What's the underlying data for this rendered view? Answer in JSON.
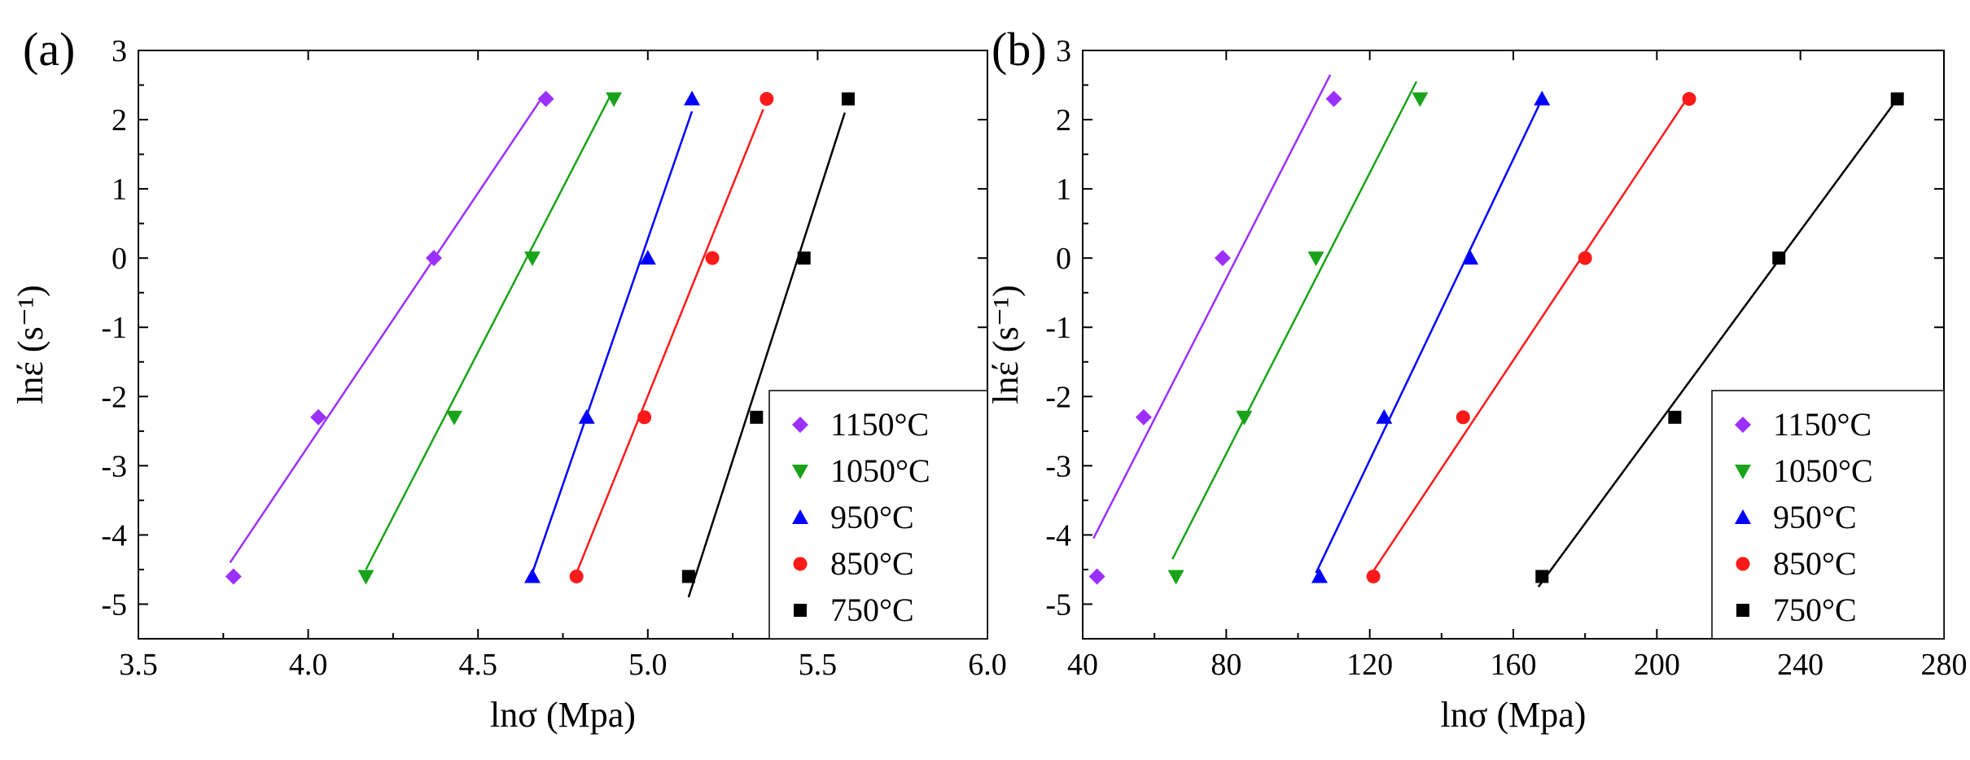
{
  "chart_data": [
    {
      "type": "scatter",
      "panel_label": "(a)",
      "title": "",
      "xlabel": "lnσ (Mpa)",
      "ylabel": "lnέ (s⁻¹)",
      "xlim": [
        3.5,
        6.0
      ],
      "ylim": [
        -5.5,
        3
      ],
      "xticks": [
        3.5,
        4.0,
        4.5,
        5.0,
        5.5,
        6.0
      ],
      "xtick_labels": [
        "3.5",
        "4.0",
        "4.5",
        "5.0",
        "5.5",
        "6.0"
      ],
      "yticks": [
        -5,
        -4,
        -3,
        -2,
        -1,
        0,
        1,
        2,
        3
      ],
      "ytick_labels": [
        "-5",
        "-4",
        "-3",
        "-2",
        "-1",
        "0",
        "1",
        "2",
        "3"
      ],
      "legend_position": "bottom-right",
      "series": [
        {
          "name": "1150°C",
          "color": "#9b30ff",
          "marker": "diamond",
          "points": [
            [
              3.78,
              -4.6
            ],
            [
              4.03,
              -2.3
            ],
            [
              4.37,
              0
            ],
            [
              4.7,
              2.3
            ]
          ],
          "fit": [
            [
              3.77,
              -4.4
            ],
            [
              4.69,
              2.33
            ]
          ]
        },
        {
          "name": "1050°C",
          "color": "#1aa31a",
          "marker": "triangle-down",
          "points": [
            [
              4.17,
              -4.6
            ],
            [
              4.43,
              -2.3
            ],
            [
              4.66,
              0
            ],
            [
              4.9,
              2.3
            ]
          ],
          "fit": [
            [
              4.17,
              -4.5
            ],
            [
              4.89,
              2.35
            ]
          ]
        },
        {
          "name": "950°C",
          "color": "#0000ff",
          "marker": "triangle-up",
          "points": [
            [
              4.66,
              -4.6
            ],
            [
              4.82,
              -2.3
            ],
            [
              5.0,
              0
            ],
            [
              5.13,
              2.3
            ]
          ],
          "fit": [
            [
              4.66,
              -4.55
            ],
            [
              5.13,
              2.12
            ]
          ]
        },
        {
          "name": "850°C",
          "color": "#ff1a1a",
          "marker": "circle",
          "points": [
            [
              4.79,
              -4.6
            ],
            [
              4.99,
              -2.3
            ],
            [
              5.19,
              0
            ],
            [
              5.35,
              2.3
            ]
          ],
          "fit": [
            [
              4.79,
              -4.55
            ],
            [
              5.34,
              2.15
            ]
          ]
        },
        {
          "name": "750°C",
          "color": "#000000",
          "marker": "square",
          "points": [
            [
              5.12,
              -4.6
            ],
            [
              5.32,
              -2.3
            ],
            [
              5.46,
              0
            ],
            [
              5.59,
              2.3
            ]
          ],
          "fit": [
            [
              5.12,
              -4.9
            ],
            [
              5.58,
              2.1
            ]
          ]
        }
      ]
    },
    {
      "type": "scatter",
      "panel_label": "(b)",
      "title": "",
      "xlabel": "lnσ (Mpa)",
      "ylabel": "lnέ (s⁻¹)",
      "xlim": [
        40,
        280
      ],
      "ylim": [
        -5.5,
        3
      ],
      "xticks": [
        40,
        80,
        120,
        160,
        200,
        240,
        280
      ],
      "xtick_labels": [
        "40",
        "80",
        "120",
        "160",
        "200",
        "240",
        "280"
      ],
      "yticks": [
        -5,
        -4,
        -3,
        -2,
        -1,
        0,
        1,
        2,
        3
      ],
      "ytick_labels": [
        "-5",
        "-4",
        "-3",
        "-2",
        "-1",
        "0",
        "1",
        "2",
        "3"
      ],
      "legend_position": "bottom-right",
      "series": [
        {
          "name": "1150°C",
          "color": "#9b30ff",
          "marker": "diamond",
          "points": [
            [
              44,
              -4.6
            ],
            [
              57,
              -2.3
            ],
            [
              79,
              0
            ],
            [
              110,
              2.3
            ]
          ],
          "fit": [
            [
              43,
              -4.05
            ],
            [
              109,
              2.65
            ]
          ]
        },
        {
          "name": "1050°C",
          "color": "#1aa31a",
          "marker": "triangle-down",
          "points": [
            [
              66,
              -4.6
            ],
            [
              85,
              -2.3
            ],
            [
              105,
              0
            ],
            [
              134,
              2.3
            ]
          ],
          "fit": [
            [
              65,
              -4.35
            ],
            [
              133,
              2.55
            ]
          ]
        },
        {
          "name": "950°C",
          "color": "#0000ff",
          "marker": "triangle-up",
          "points": [
            [
              106,
              -4.6
            ],
            [
              124,
              -2.3
            ],
            [
              148,
              0
            ],
            [
              168,
              2.3
            ]
          ],
          "fit": [
            [
              105,
              -4.55
            ],
            [
              168,
              2.3
            ]
          ]
        },
        {
          "name": "850°C",
          "color": "#ff1a1a",
          "marker": "circle",
          "points": [
            [
              121,
              -4.6
            ],
            [
              146,
              -2.3
            ],
            [
              180,
              0
            ],
            [
              209,
              2.3
            ]
          ],
          "fit": [
            [
              120,
              -4.6
            ],
            [
              209,
              2.35
            ]
          ]
        },
        {
          "name": "750°C",
          "color": "#000000",
          "marker": "square",
          "points": [
            [
              168,
              -4.6
            ],
            [
              205,
              -2.3
            ],
            [
              234,
              0
            ],
            [
              267,
              2.3
            ]
          ],
          "fit": [
            [
              167,
              -4.75
            ],
            [
              267,
              2.3
            ]
          ]
        }
      ]
    }
  ]
}
